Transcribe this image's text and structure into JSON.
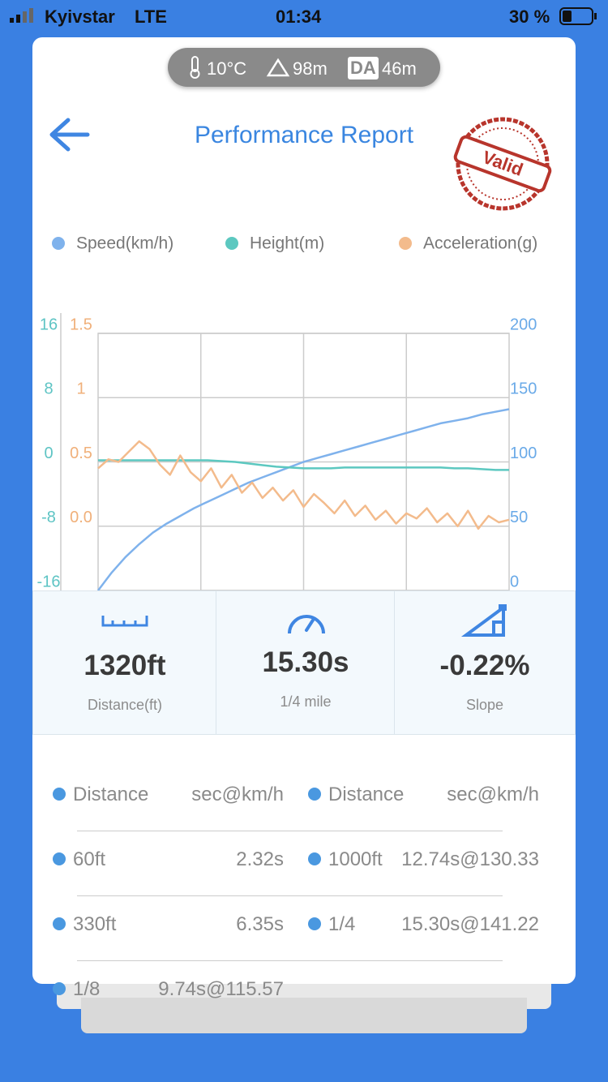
{
  "status": {
    "carrier": "Kyivstar",
    "network": "LTE",
    "time": "01:34",
    "battery": "30 %"
  },
  "conditions": {
    "temperature": "10°C",
    "altitude": "98m",
    "da_label": "DA",
    "density_altitude": "46m"
  },
  "header": {
    "title": "Performance Report",
    "stamp": "Valid"
  },
  "chart_data": {
    "type": "line",
    "ylim": [
      -16,
      16
    ],
    "yticks": [
      -16,
      -8,
      0,
      8,
      16
    ],
    "y2lim": [
      0,
      200
    ],
    "y2ticks": [
      0,
      50,
      100,
      150,
      200
    ],
    "y3lim": [
      -0.5,
      1.5
    ],
    "y3ticks": [
      {
        "value": 0,
        "label": "0.0"
      },
      0.5,
      1,
      1.5
    ],
    "grid": true,
    "series": [
      {
        "name": "Speed(km/h)",
        "color": "#7fb2ec",
        "axis": "y2",
        "values": [
          0,
          14,
          26,
          36,
          45,
          52,
          58,
          64,
          69,
          74,
          79,
          84,
          88,
          92,
          96,
          100,
          103,
          106,
          109,
          112,
          115,
          118,
          121,
          124,
          127,
          130,
          132,
          134,
          137,
          139,
          141
        ]
      },
      {
        "name": "Height(m)",
        "color": "#5cc8c0",
        "axis": "y",
        "values": [
          0.2,
          0.2,
          0.2,
          0.2,
          0.2,
          0.2,
          0.2,
          0.2,
          0.2,
          0.1,
          0,
          -0.2,
          -0.4,
          -0.6,
          -0.7,
          -0.8,
          -0.8,
          -0.8,
          -0.7,
          -0.7,
          -0.7,
          -0.7,
          -0.7,
          -0.7,
          -0.7,
          -0.7,
          -0.8,
          -0.8,
          -0.9,
          -1.0,
          -1.0
        ]
      },
      {
        "name": "Acceleration(g)",
        "color": "#f3bb8c",
        "axis": "y3",
        "values": [
          0.45,
          0.52,
          0.5,
          0.58,
          0.66,
          0.6,
          0.48,
          0.4,
          0.55,
          0.42,
          0.35,
          0.45,
          0.3,
          0.4,
          0.26,
          0.34,
          0.22,
          0.3,
          0.2,
          0.28,
          0.15,
          0.25,
          0.18,
          0.1,
          0.2,
          0.08,
          0.16,
          0.05,
          0.12,
          0.02,
          0.1,
          0.06,
          0.14,
          0.03,
          0.1,
          0,
          0.12,
          -0.02,
          0.08,
          0.03,
          0.05
        ]
      }
    ]
  },
  "stats": [
    {
      "value": "1320ft",
      "label": "Distance(ft)"
    },
    {
      "value": "15.30s",
      "label": "1/4 mile"
    },
    {
      "value": "-0.22%",
      "label": "Slope"
    }
  ],
  "table": {
    "header": [
      "Distance",
      "sec@km/h",
      "Distance",
      "sec@km/h"
    ],
    "rows": [
      [
        "60ft",
        "2.32s",
        "1000ft",
        "12.74s@130.33"
      ],
      [
        "330ft",
        "6.35s",
        "1/4",
        "15.30s@141.22"
      ],
      [
        "1/8",
        "9.74s@115.57",
        "",
        ""
      ]
    ]
  }
}
